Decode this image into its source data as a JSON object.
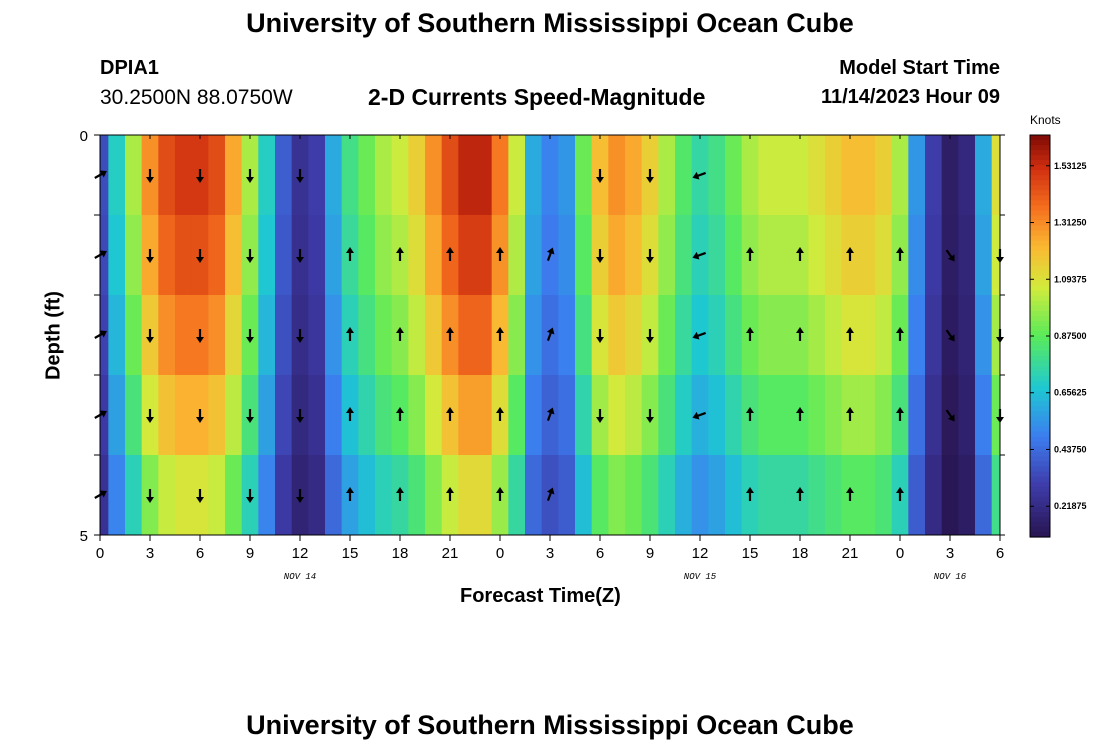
{
  "page": {
    "title": "University of Southern Mississippi Ocean Cube",
    "station_name": "DPIA1",
    "station_coords": "30.2500N  88.0750W",
    "chart_title": "2-D Currents Speed-Magnitude",
    "model_start_label": "Model Start Time",
    "model_start_value": "11/14/2023 Hour 09",
    "footer_title": "University of Southern Mississippi Ocean Cube"
  },
  "chart_data": {
    "type": "heatmap",
    "title": "2-D Currents Speed-Magnitude",
    "xlabel": "Forecast Time(Z)",
    "ylabel": "Depth (ft)",
    "colorbar_label": "Knots",
    "x_tick_labels": [
      "0",
      "3",
      "6",
      "9",
      "12",
      "15",
      "18",
      "21",
      "0",
      "3",
      "6",
      "9",
      "12",
      "15",
      "18",
      "21",
      "0",
      "3",
      "6"
    ],
    "date_labels": [
      {
        "text": "NOV 14",
        "hour_index": 12
      },
      {
        "text": "NOV 15",
        "hour_index": 36
      },
      {
        "text": "NOV 16",
        "hour_index": 51
      }
    ],
    "xlim_hours": [
      0,
      54
    ],
    "ylim_depth": [
      0,
      5
    ],
    "y_tick_labels": [
      "0",
      "5"
    ],
    "depth_levels": [
      0.5,
      1.5,
      2.5,
      3.5,
      4.5
    ],
    "colorbar_ticks": [
      "1.53125",
      "1.31250",
      "1.09375",
      "0.87500",
      "0.65625",
      "0.43750",
      "0.21875"
    ],
    "color_range": [
      0.1,
      1.65
    ],
    "speed_profile": {
      "hours": [
        0,
        1,
        2,
        3,
        4,
        5,
        6,
        7,
        8,
        9,
        10,
        11,
        12,
        13,
        14,
        15,
        16,
        17,
        18,
        19,
        20,
        21,
        22,
        23,
        24,
        25,
        26,
        27,
        28,
        29,
        30,
        31,
        32,
        33,
        34,
        35,
        36,
        37,
        38,
        39,
        40,
        41,
        42,
        43,
        44,
        45,
        46,
        47,
        48,
        49,
        50,
        51,
        52,
        53,
        54
      ],
      "speeds": [
        0.35,
        0.7,
        1.0,
        1.3,
        1.45,
        1.5,
        1.5,
        1.45,
        1.25,
        1.0,
        0.7,
        0.4,
        0.25,
        0.3,
        0.6,
        0.8,
        0.9,
        1.0,
        1.05,
        1.15,
        1.3,
        1.45,
        1.55,
        1.55,
        1.35,
        1.05,
        0.6,
        0.5,
        0.55,
        0.9,
        1.2,
        1.3,
        1.25,
        1.15,
        1.0,
        0.85,
        0.75,
        0.8,
        0.9,
        1.0,
        1.05,
        1.05,
        1.05,
        1.1,
        1.15,
        1.2,
        1.2,
        1.15,
        1.0,
        0.55,
        0.3,
        0.15,
        0.2,
        0.6,
        1.1
      ],
      "depth_factor": [
        1.0,
        0.96,
        0.9,
        0.82,
        0.72
      ]
    },
    "arrow_hours": [
      0,
      3,
      6,
      9,
      12,
      15,
      18,
      21,
      24,
      27,
      30,
      33,
      36,
      39,
      42,
      45,
      48,
      51,
      54
    ],
    "arrow_directions_deg": [
      60,
      180,
      180,
      180,
      180,
      0,
      0,
      0,
      0,
      20,
      180,
      180,
      250,
      0,
      0,
      0,
      0,
      145,
      180
    ],
    "arrow_rows": [
      [
        0,
        1,
        2,
        3,
        4
      ],
      [
        0,
        1,
        2,
        3,
        4
      ],
      [
        0,
        1,
        2,
        3,
        4
      ],
      [
        0,
        1,
        2,
        3,
        4
      ],
      [
        0,
        1,
        2,
        3,
        4
      ],
      [
        1,
        2,
        3,
        4
      ],
      [
        1,
        2,
        3,
        4
      ],
      [
        1,
        2,
        3,
        4
      ],
      [
        1,
        2,
        3,
        4
      ],
      [
        1,
        2,
        3,
        4
      ],
      [
        0,
        1,
        2,
        3
      ],
      [
        0,
        1,
        2,
        3
      ],
      [
        0,
        1,
        2,
        3
      ],
      [
        1,
        2,
        3,
        4
      ],
      [
        1,
        2,
        3,
        4
      ],
      [
        1,
        2,
        3,
        4
      ],
      [
        1,
        2,
        3,
        4
      ],
      [
        1,
        2,
        3
      ],
      [
        1,
        2,
        3
      ]
    ]
  }
}
